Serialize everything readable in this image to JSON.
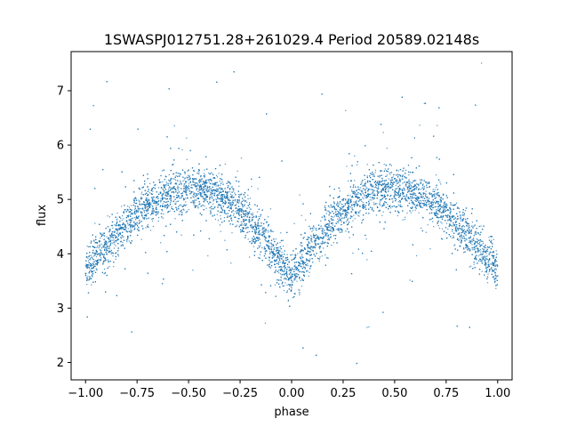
{
  "chart_data": {
    "type": "scatter",
    "title": "1SWASPJ012751.28+261029.4 Period 20589.02148s",
    "xlabel": "phase",
    "ylabel": "flux",
    "xlim": [
      -1.07,
      1.07
    ],
    "ylim": [
      1.68,
      7.72
    ],
    "x_ticks": [
      -1.0,
      -0.75,
      -0.5,
      -0.25,
      0.0,
      0.25,
      0.5,
      0.75,
      1.0
    ],
    "x_tick_labels": [
      "−1.00",
      "−0.75",
      "−0.50",
      "−0.25",
      "0.00",
      "0.25",
      "0.50",
      "0.75",
      "1.00"
    ],
    "y_ticks": [
      2,
      3,
      4,
      5,
      6,
      7
    ],
    "y_tick_labels": [
      "2",
      "3",
      "4",
      "5",
      "6",
      "7"
    ],
    "grid": false,
    "point_color": "#1f77b4",
    "series": [
      {
        "x": [
          -1.0,
          -0.9,
          -0.8,
          -0.7,
          -0.6,
          -0.5,
          -0.4,
          -0.3,
          -0.2,
          -0.1,
          0.0,
          0.1,
          0.2,
          0.3,
          0.4,
          0.5,
          0.6,
          0.7,
          0.8,
          0.9,
          1.0
        ],
        "y": [
          3.75,
          4.1,
          4.55,
          4.9,
          5.1,
          5.2,
          5.15,
          4.95,
          4.6,
          4.1,
          3.55,
          4.1,
          4.6,
          4.95,
          5.15,
          5.2,
          5.1,
          4.9,
          4.55,
          4.1,
          3.75
        ]
      }
    ]
  }
}
